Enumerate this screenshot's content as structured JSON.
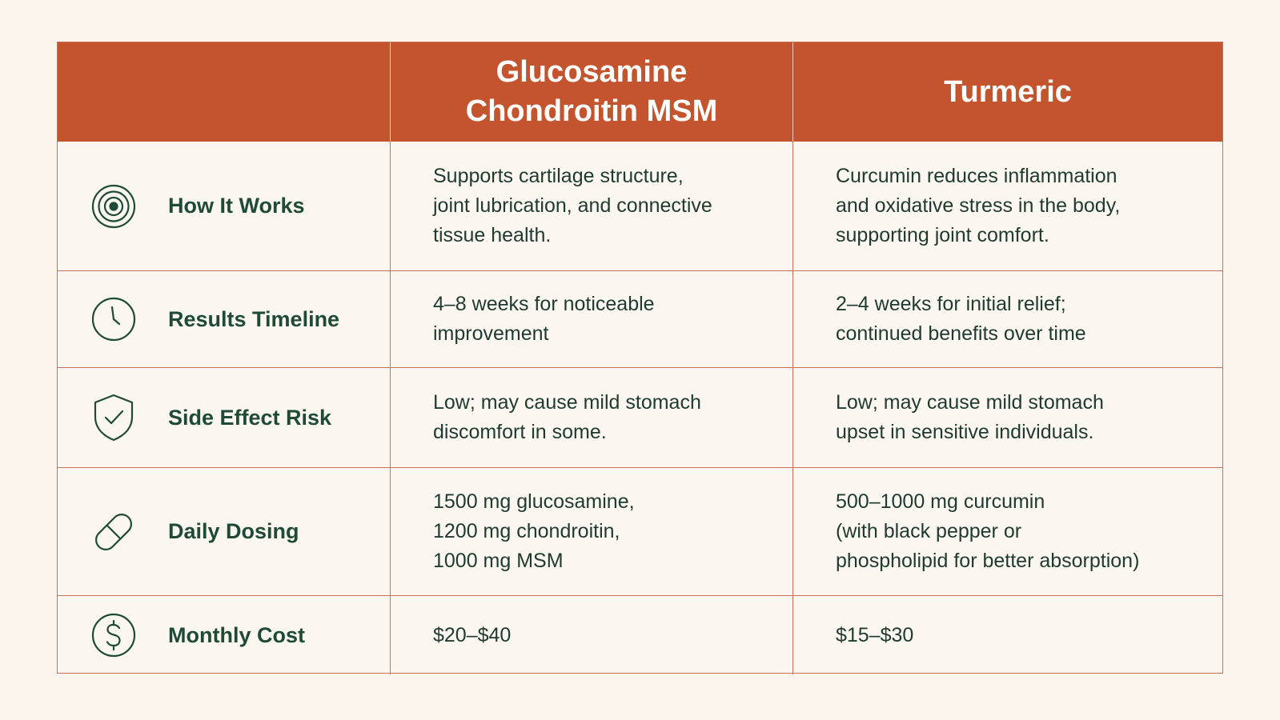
{
  "colors": {
    "background": "#fcf5ee",
    "header_bg": "#c4542e",
    "header_text": "#ffffff",
    "grid_line": "#c9705a",
    "label_text": "#1e4a37",
    "body_text": "#1f3a2f"
  },
  "header": {
    "empty": "",
    "col1": "Glucosamine\nChondroitin MSM",
    "col2": "Turmeric"
  },
  "rows": [
    {
      "icon": "target-icon",
      "label": "How It Works",
      "col1": "Supports cartilage structure,\njoint lubrication, and connective\ntissue health.",
      "col2": "Curcumin reduces inflammation\nand oxidative stress in the body,\nsupporting joint comfort."
    },
    {
      "icon": "clock-icon",
      "label": "Results Timeline",
      "col1": "4–8 weeks for noticeable\nimprovement",
      "col2": "2–4 weeks for initial relief;\ncontinued benefits over time"
    },
    {
      "icon": "shield-check-icon",
      "label": "Side Effect Risk",
      "col1": "Low; may cause mild stomach\ndiscomfort in some.",
      "col2": "Low; may cause mild stomach\nupset in sensitive individuals."
    },
    {
      "icon": "pill-icon",
      "label": "Daily Dosing",
      "col1": "1500 mg glucosamine,\n1200 mg chondroitin,\n1000 mg MSM",
      "col2": "500–1000 mg curcumin\n(with black pepper or\nphospholipid for better absorption)"
    },
    {
      "icon": "dollar-icon",
      "label": "Monthly Cost",
      "col1": "$20–$40",
      "col2": "$15–$30"
    }
  ]
}
